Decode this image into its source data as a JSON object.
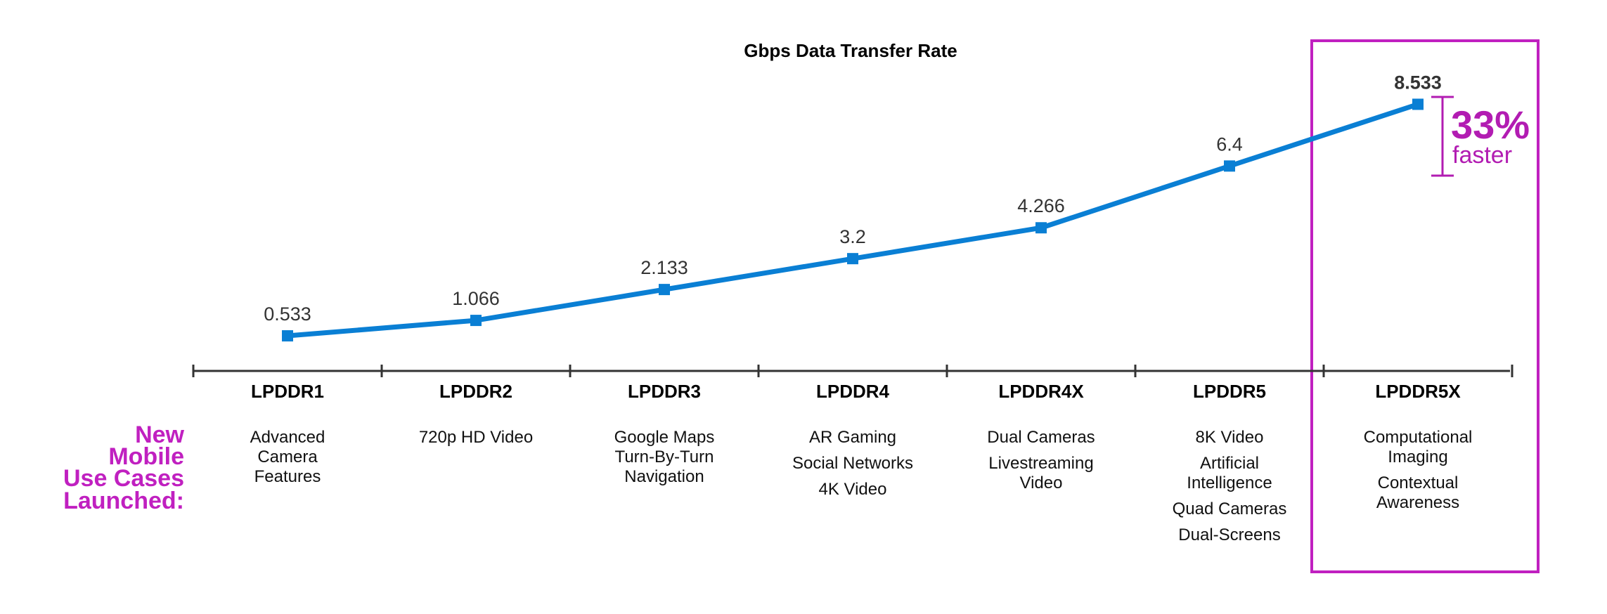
{
  "chart_data": {
    "type": "line",
    "title": "Gbps Data Transfer Rate",
    "categories": [
      "LPDDR1",
      "LPDDR2",
      "LPDDR3",
      "LPDDR4",
      "LPDDR4X",
      "LPDDR5",
      "LPDDR5X"
    ],
    "values": [
      0.533,
      1.066,
      2.133,
      3.2,
      4.266,
      6.4,
      8.533
    ],
    "value_labels": [
      "0.533",
      "1.066",
      "2.133",
      "3.2",
      "4.266",
      "6.4",
      "8.533"
    ],
    "ylim": [
      0,
      9
    ],
    "xlabel": "",
    "ylabel": "",
    "grid": false,
    "series_color": "#0a7fd4"
  },
  "row_label": [
    "New",
    "Mobile",
    "Use Cases",
    "Launched:"
  ],
  "use_cases": [
    [
      [
        "Advanced",
        "Camera",
        "Features"
      ]
    ],
    [
      [
        "720p HD Video"
      ]
    ],
    [
      [
        "Google Maps",
        "Turn-By-Turn",
        "Navigation"
      ]
    ],
    [
      [
        "AR Gaming"
      ],
      [
        "Social Networks"
      ],
      [
        "4K Video"
      ]
    ],
    [
      [
        "Dual Cameras"
      ],
      [
        "Livestreaming",
        "Video"
      ]
    ],
    [
      [
        "8K Video"
      ],
      [
        "Artificial",
        "Intelligence"
      ],
      [
        "Quad Cameras"
      ],
      [
        "Dual-Screens"
      ]
    ],
    [
      [
        "Computational",
        "Imaging"
      ],
      [
        "Contextual",
        "Awareness"
      ]
    ]
  ],
  "highlight": {
    "percent": "33%",
    "caption": "faster",
    "color": "#b21cb2"
  }
}
